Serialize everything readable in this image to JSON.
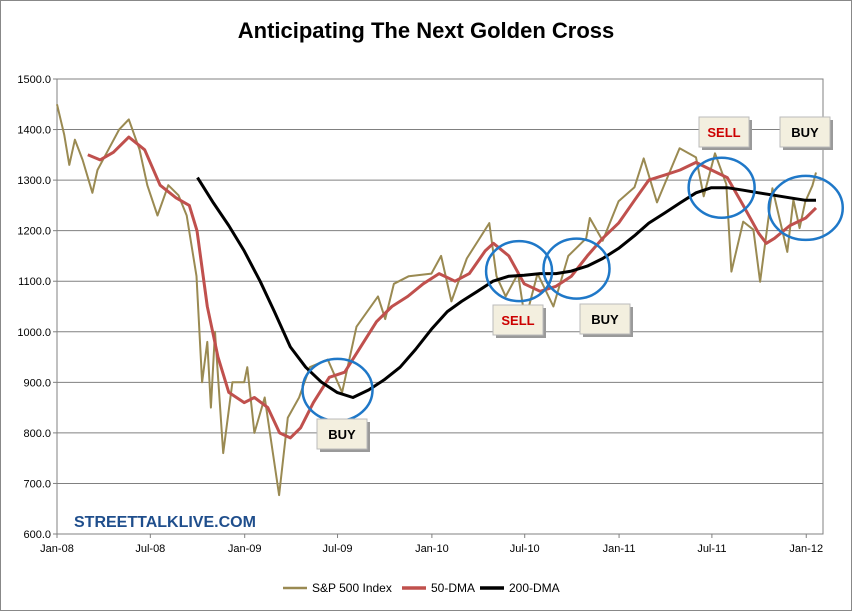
{
  "chart_data": {
    "type": "line",
    "title": "Anticipating The Next Golden Cross",
    "watermark": "STREETTALKLIVE.COM",
    "ylim": [
      600,
      1500
    ],
    "y_ticks": [
      "1500.0",
      "1400.0",
      "1300.0",
      "1200.0",
      "1100.0",
      "1000.0",
      "900.0",
      "800.0",
      "700.0",
      "600.0"
    ],
    "x_ticks": [
      "Jan-08",
      "Jul-08",
      "Jan-09",
      "Jul-09",
      "Jan-10",
      "Jul-10",
      "Jan-11",
      "Jul-11",
      "Jan-12"
    ],
    "grid": true,
    "legend_position": "bottom",
    "series": [
      {
        "name": "S&P 500 Index",
        "color": "#9a8a52",
        "values": [
          [
            "2008-01-01",
            1450
          ],
          [
            "2008-01-15",
            1390
          ],
          [
            "2008-01-25",
            1330
          ],
          [
            "2008-02-05",
            1380
          ],
          [
            "2008-02-20",
            1340
          ],
          [
            "2008-03-10",
            1275
          ],
          [
            "2008-03-20",
            1320
          ],
          [
            "2008-04-10",
            1360
          ],
          [
            "2008-05-01",
            1400
          ],
          [
            "2008-05-20",
            1420
          ],
          [
            "2008-06-10",
            1360
          ],
          [
            "2008-06-25",
            1290
          ],
          [
            "2008-07-15",
            1230
          ],
          [
            "2008-08-05",
            1290
          ],
          [
            "2008-08-25",
            1270
          ],
          [
            "2008-09-10",
            1230
          ],
          [
            "2008-09-29",
            1110
          ],
          [
            "2008-10-10",
            900
          ],
          [
            "2008-10-20",
            980
          ],
          [
            "2008-10-27",
            850
          ],
          [
            "2008-11-04",
            1000
          ],
          [
            "2008-11-20",
            760
          ],
          [
            "2008-12-08",
            900
          ],
          [
            "2008-12-31",
            900
          ],
          [
            "2009-01-06",
            930
          ],
          [
            "2009-01-20",
            800
          ],
          [
            "2009-02-09",
            870
          ],
          [
            "2009-02-25",
            760
          ],
          [
            "2009-03-09",
            677
          ],
          [
            "2009-03-26",
            830
          ],
          [
            "2009-04-17",
            870
          ],
          [
            "2009-05-08",
            930
          ],
          [
            "2009-06-12",
            945
          ],
          [
            "2009-07-10",
            880
          ],
          [
            "2009-08-07",
            1010
          ],
          [
            "2009-09-18",
            1070
          ],
          [
            "2009-10-02",
            1025
          ],
          [
            "2009-10-19",
            1095
          ],
          [
            "2009-11-17",
            1110
          ],
          [
            "2009-12-31",
            1115
          ],
          [
            "2010-01-19",
            1150
          ],
          [
            "2010-02-08",
            1060
          ],
          [
            "2010-03-10",
            1145
          ],
          [
            "2010-04-23",
            1215
          ],
          [
            "2010-05-07",
            1110
          ],
          [
            "2010-05-25",
            1070
          ],
          [
            "2010-06-18",
            1115
          ],
          [
            "2010-07-02",
            1022
          ],
          [
            "2010-07-26",
            1115
          ],
          [
            "2010-08-26",
            1050
          ],
          [
            "2010-09-24",
            1150
          ],
          [
            "2010-10-29",
            1185
          ],
          [
            "2010-11-05",
            1225
          ],
          [
            "2010-11-30",
            1180
          ],
          [
            "2010-12-31",
            1258
          ],
          [
            "2011-01-31",
            1286
          ],
          [
            "2011-02-18",
            1343
          ],
          [
            "2011-03-16",
            1256
          ],
          [
            "2011-04-29",
            1363
          ],
          [
            "2011-05-31",
            1345
          ],
          [
            "2011-06-15",
            1268
          ],
          [
            "2011-07-07",
            1353
          ],
          [
            "2011-07-29",
            1292
          ],
          [
            "2011-08-08",
            1119
          ],
          [
            "2011-08-31",
            1218
          ],
          [
            "2011-09-20",
            1202
          ],
          [
            "2011-10-03",
            1099
          ],
          [
            "2011-10-27",
            1284
          ],
          [
            "2011-11-25",
            1158
          ],
          [
            "2011-12-07",
            1261
          ],
          [
            "2011-12-19",
            1205
          ],
          [
            "2011-12-30",
            1257
          ],
          [
            "2012-01-13",
            1289
          ],
          [
            "2012-01-20",
            1315
          ]
        ]
      },
      {
        "name": "50-DMA",
        "color": "#c0504d",
        "values": [
          [
            "2008-03-01",
            1350
          ],
          [
            "2008-03-25",
            1340
          ],
          [
            "2008-04-20",
            1355
          ],
          [
            "2008-05-20",
            1385
          ],
          [
            "2008-06-20",
            1360
          ],
          [
            "2008-07-20",
            1290
          ],
          [
            "2008-08-20",
            1265
          ],
          [
            "2008-09-15",
            1250
          ],
          [
            "2008-09-30",
            1200
          ],
          [
            "2008-10-20",
            1050
          ],
          [
            "2008-11-10",
            950
          ],
          [
            "2008-12-01",
            880
          ],
          [
            "2008-12-31",
            860
          ],
          [
            "2009-01-20",
            870
          ],
          [
            "2009-02-15",
            850
          ],
          [
            "2009-03-10",
            800
          ],
          [
            "2009-03-31",
            790
          ],
          [
            "2009-04-20",
            810
          ],
          [
            "2009-05-15",
            860
          ],
          [
            "2009-06-15",
            910
          ],
          [
            "2009-07-15",
            920
          ],
          [
            "2009-08-15",
            970
          ],
          [
            "2009-09-15",
            1020
          ],
          [
            "2009-10-15",
            1050
          ],
          [
            "2009-11-15",
            1070
          ],
          [
            "2009-12-15",
            1095
          ],
          [
            "2010-01-15",
            1115
          ],
          [
            "2010-02-15",
            1100
          ],
          [
            "2010-03-15",
            1115
          ],
          [
            "2010-04-15",
            1160
          ],
          [
            "2010-05-01",
            1175
          ],
          [
            "2010-05-31",
            1150
          ],
          [
            "2010-06-30",
            1095
          ],
          [
            "2010-07-31",
            1080
          ],
          [
            "2010-08-31",
            1090
          ],
          [
            "2010-09-30",
            1110
          ],
          [
            "2010-10-31",
            1150
          ],
          [
            "2010-11-30",
            1185
          ],
          [
            "2010-12-31",
            1215
          ],
          [
            "2011-01-31",
            1260
          ],
          [
            "2011-02-28",
            1300
          ],
          [
            "2011-03-31",
            1310
          ],
          [
            "2011-04-30",
            1320
          ],
          [
            "2011-05-31",
            1335
          ],
          [
            "2011-06-30",
            1320
          ],
          [
            "2011-07-31",
            1305
          ],
          [
            "2011-08-31",
            1250
          ],
          [
            "2011-09-30",
            1195
          ],
          [
            "2011-10-15",
            1175
          ],
          [
            "2011-10-31",
            1185
          ],
          [
            "2011-11-30",
            1210
          ],
          [
            "2011-12-31",
            1225
          ],
          [
            "2012-01-20",
            1245
          ]
        ]
      },
      {
        "name": "200-DMA",
        "color": "#000000",
        "values": [
          [
            "2008-10-01",
            1305
          ],
          [
            "2008-11-01",
            1255
          ],
          [
            "2008-12-01",
            1210
          ],
          [
            "2008-12-31",
            1160
          ],
          [
            "2009-01-31",
            1100
          ],
          [
            "2009-02-28",
            1040
          ],
          [
            "2009-03-31",
            970
          ],
          [
            "2009-04-30",
            930
          ],
          [
            "2009-05-31",
            900
          ],
          [
            "2009-06-30",
            880
          ],
          [
            "2009-07-31",
            870
          ],
          [
            "2009-08-31",
            885
          ],
          [
            "2009-09-30",
            905
          ],
          [
            "2009-10-31",
            930
          ],
          [
            "2009-11-30",
            965
          ],
          [
            "2009-12-31",
            1005
          ],
          [
            "2010-01-31",
            1040
          ],
          [
            "2010-02-28",
            1060
          ],
          [
            "2010-03-31",
            1080
          ],
          [
            "2010-04-30",
            1100
          ],
          [
            "2010-05-31",
            1110
          ],
          [
            "2010-06-30",
            1112
          ],
          [
            "2010-07-31",
            1115
          ],
          [
            "2010-08-31",
            1115
          ],
          [
            "2010-09-30",
            1120
          ],
          [
            "2010-10-31",
            1130
          ],
          [
            "2010-11-30",
            1145
          ],
          [
            "2010-12-31",
            1165
          ],
          [
            "2011-01-31",
            1190
          ],
          [
            "2011-02-28",
            1215
          ],
          [
            "2011-03-31",
            1235
          ],
          [
            "2011-04-30",
            1255
          ],
          [
            "2011-05-31",
            1275
          ],
          [
            "2011-06-30",
            1285
          ],
          [
            "2011-07-31",
            1285
          ],
          [
            "2011-08-31",
            1280
          ],
          [
            "2011-09-30",
            1275
          ],
          [
            "2011-10-31",
            1270
          ],
          [
            "2011-11-30",
            1265
          ],
          [
            "2011-12-31",
            1260
          ],
          [
            "2012-01-20",
            1260
          ]
        ]
      }
    ],
    "annotations": [
      {
        "label": "BUY",
        "color": "#000000",
        "circle_at": [
          "2009-07-01",
          885
        ]
      },
      {
        "label": "SELL",
        "color": "#cc0000",
        "circle_at": [
          "2010-06-20",
          1120
        ]
      },
      {
        "label": "BUY",
        "color": "#000000",
        "circle_at": [
          "2010-10-10",
          1125
        ]
      },
      {
        "label": "SELL",
        "color": "#cc0000",
        "circle_at": [
          "2011-07-20",
          1285
        ]
      },
      {
        "label": "BUY",
        "color": "#000000",
        "circle_at": [
          "2011-12-31",
          1245
        ]
      }
    ]
  }
}
